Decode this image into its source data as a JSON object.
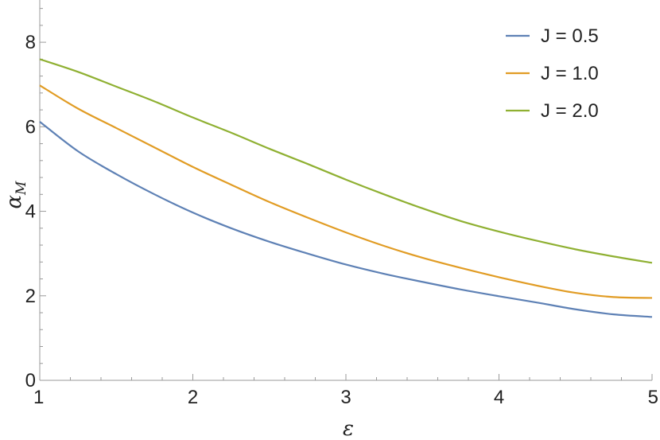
{
  "chart_data": {
    "type": "line",
    "xlabel": "ε",
    "ylabel_main": "α",
    "ylabel_sub": "M",
    "xlim": [
      1,
      5
    ],
    "ylim": [
      0,
      9
    ],
    "xticks": [
      1,
      2,
      3,
      4,
      5
    ],
    "yticks": [
      0,
      2,
      4,
      6,
      8
    ],
    "grid": false,
    "legend_position": "top-right",
    "x": [
      1.0,
      1.25,
      1.5,
      1.75,
      2.0,
      2.25,
      2.5,
      2.75,
      3.0,
      3.25,
      3.5,
      3.75,
      4.0,
      4.25,
      4.5,
      4.75,
      5.0
    ],
    "series": [
      {
        "name": "J = 0.5",
        "color": "#5e81b5",
        "values": [
          6.12,
          5.42,
          4.88,
          4.4,
          3.97,
          3.6,
          3.28,
          3.0,
          2.74,
          2.52,
          2.33,
          2.15,
          1.99,
          1.84,
          1.68,
          1.56,
          1.5
        ]
      },
      {
        "name": "J = 1.0",
        "color": "#e19c24",
        "values": [
          6.98,
          6.43,
          5.97,
          5.51,
          5.05,
          4.63,
          4.22,
          3.85,
          3.5,
          3.18,
          2.9,
          2.66,
          2.44,
          2.24,
          2.07,
          1.97,
          1.95
        ]
      },
      {
        "name": "J = 2.0",
        "color": "#8fb032",
        "values": [
          7.6,
          7.3,
          6.95,
          6.6,
          6.22,
          5.86,
          5.48,
          5.12,
          4.75,
          4.4,
          4.07,
          3.77,
          3.52,
          3.3,
          3.1,
          2.93,
          2.78
        ]
      }
    ]
  }
}
